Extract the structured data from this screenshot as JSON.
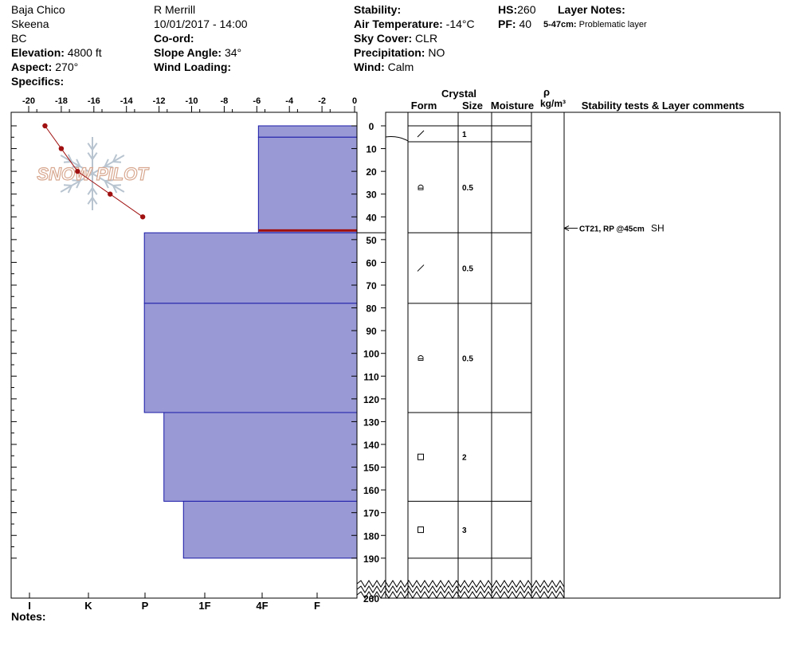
{
  "header": {
    "location": "Baja Chico",
    "range": "Skeena",
    "state": "BC",
    "elevation_label": "Elevation:",
    "elevation": "4800 ft",
    "aspect_label": "Aspect:",
    "aspect": "270°",
    "specifics_label": "Specifics:",
    "observer": "R Merrill",
    "datetime": "10/01/2017 - 14:00",
    "coord_label": "Co-ord:",
    "slope_label": "Slope Angle:",
    "slope": "34°",
    "wind_loading_label": "Wind Loading:",
    "stability_label": "Stability:",
    "air_temp_label": "Air Temperature:",
    "air_temp": "-14°C",
    "sky_label": "Sky Cover:",
    "sky": "CLR",
    "precip_label": "Precipitation:",
    "precip": "NO",
    "wind_label": "Wind:",
    "wind": "Calm",
    "hs_label": "HS:",
    "hs": "260",
    "pf_label": "PF:",
    "pf": "40",
    "layer_notes_label": "Layer Notes:",
    "layer_note_range": "5-47cm:",
    "layer_note_text": "Problematic layer"
  },
  "notes_label": "Notes:",
  "logo_text": "SNOW PILOT",
  "columns": {
    "crystal": "Crystal",
    "form": "Form",
    "size": "Size",
    "moisture": "Moisture",
    "rho": "ρ",
    "density_unit": "kg/m³",
    "stability": "Stability tests & Layer comments"
  },
  "colors": {
    "layer_fill": "#9999d6",
    "layer_edge": "#1a1aa8",
    "temp_line": "#a01010",
    "weak_layer": "#a01010",
    "logo": "#d8a890"
  },
  "chart_data": {
    "type": "snow-profile",
    "temp_axis": {
      "ticks": [
        -20,
        -18,
        -16,
        -14,
        -12,
        -10,
        -8,
        -6,
        -4,
        -2,
        0
      ],
      "range": [
        -20,
        0
      ]
    },
    "depth_axis": {
      "ticks": [
        0,
        10,
        20,
        30,
        40,
        50,
        60,
        70,
        80,
        90,
        100,
        110,
        120,
        130,
        140,
        150,
        160,
        170,
        180,
        190,
        260
      ],
      "break_after": 190
    },
    "hardness_labels": [
      "I",
      "K",
      "P",
      "1F",
      "4F",
      "F"
    ],
    "temperature_profile": [
      {
        "depth": 0,
        "temp": -19
      },
      {
        "depth": 10,
        "temp": -18
      },
      {
        "depth": 20,
        "temp": -17
      },
      {
        "depth": 30,
        "temp": -15
      },
      {
        "depth": 40,
        "temp": -13
      }
    ],
    "layers": [
      {
        "top": 0,
        "bottom": 5,
        "hardness_temp_edge": -5.9,
        "form": "/",
        "size": "1"
      },
      {
        "top": 5,
        "bottom": 47,
        "hardness_temp_edge": -5.9,
        "form": "cup",
        "size": "0.5"
      },
      {
        "top": 47,
        "bottom": 78,
        "hardness_temp_edge": -12.9,
        "form": "/",
        "size": "0.5"
      },
      {
        "top": 78,
        "bottom": 126,
        "hardness_temp_edge": -12.9,
        "form": "cup",
        "size": "0.5"
      },
      {
        "top": 126,
        "bottom": 165,
        "hardness_temp_edge": -11.7,
        "form": "square",
        "size": "2"
      },
      {
        "top": 165,
        "bottom": 190,
        "hardness_temp_edge": -10.5,
        "form": "square",
        "size": "3"
      }
    ],
    "weak_layer_depth": 46,
    "stability_tests": [
      {
        "depth": 45,
        "result": "CT21, RP @45cm",
        "shear": "SH"
      }
    ]
  }
}
